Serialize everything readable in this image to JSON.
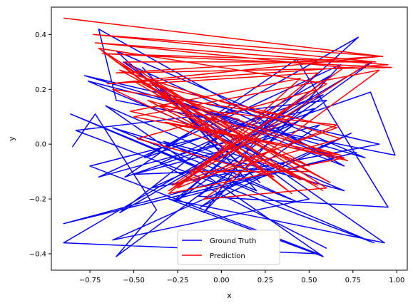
{
  "chart_data": {
    "type": "line",
    "title": "",
    "xlabel": "x",
    "ylabel": "y",
    "xlim": [
      -0.97,
      1.06
    ],
    "ylim": [
      -0.46,
      0.5
    ],
    "x_ticks": [
      -0.75,
      -0.5,
      -0.25,
      0.0,
      0.25,
      0.5,
      0.75,
      1.0
    ],
    "x_tick_labels": [
      "−0.75",
      "−0.50",
      "−0.25",
      "0.00",
      "0.25",
      "0.50",
      "0.75",
      "1.00"
    ],
    "y_ticks": [
      -0.4,
      -0.2,
      0.0,
      0.2,
      0.4
    ],
    "y_tick_labels": [
      "−0.4",
      "−0.2",
      "0.0",
      "0.2",
      "0.4"
    ],
    "grid": false,
    "legend_position": "lower center",
    "series": [
      {
        "name": "Ground Truth",
        "color": "#0000ff",
        "x": [
          -0.85,
          -0.72,
          -0.37,
          -0.6,
          0.6,
          -0.83,
          0.87,
          -0.86,
          0.2,
          -0.45,
          0.02,
          -0.66,
          0.58,
          -0.3,
          0.93,
          -0.56,
          0.65,
          -0.26,
          0.7,
          -0.7,
          -0.6,
          0.99,
          0.85,
          -0.55,
          0.43,
          0.95,
          -0.13,
          0.53,
          -0.75,
          0.55,
          -0.9,
          0.86,
          -0.26,
          0.78,
          -0.44,
          0.58,
          -0.58,
          0.1,
          -0.76,
          0.7,
          -0.33,
          0.43,
          -0.62,
          0.2,
          -0.9,
          0.77,
          -0.26,
          0.62,
          -0.08,
          0.3,
          -0.5,
          0.56,
          -0.12,
          0.74,
          -0.62,
          0.5,
          -0.35,
          0.22,
          -0.6,
          0.82,
          -0.78,
          0.9,
          -0.4,
          0.43,
          -0.7,
          0.68,
          -0.1,
          0.31,
          -0.35,
          0.6
        ],
        "y": [
          -0.01,
          0.11,
          -0.24,
          -0.41,
          0.16,
          0.05,
          -0.36,
          0.11,
          -0.17,
          0.28,
          -0.05,
          0.14,
          -0.41,
          -0.2,
          -0.36,
          0.3,
          -0.05,
          0.16,
          -0.08,
          0.42,
          0.16,
          -0.04,
          0.19,
          -0.12,
          0.31,
          -0.23,
          -0.19,
          0.13,
          -0.08,
          -0.4,
          -0.36,
          0.3,
          -0.21,
          0.39,
          -0.05,
          0.18,
          -0.25,
          0.09,
          0.23,
          -0.17,
          0.01,
          -0.21,
          0.06,
          -0.1,
          -0.29,
          -0.03,
          -0.2,
          0.25,
          0.0,
          -0.09,
          -0.11,
          0.07,
          -0.23,
          0.04,
          -0.35,
          -0.2,
          0.2,
          -0.14,
          0.34,
          -0.05,
          0.25,
          0.0,
          -0.16,
          0.08,
          -0.12,
          0.29,
          -0.25,
          0.12,
          -0.07,
          -0.38
        ]
      },
      {
        "name": "Prediction",
        "color": "#ff0000",
        "x": [
          -0.9,
          0.92,
          -0.73,
          0.88,
          -0.68,
          0.97,
          -0.6,
          0.9,
          -0.65,
          0.95,
          -0.72,
          0.7,
          -0.3,
          0.85,
          -0.55,
          0.6,
          -0.1,
          0.9,
          -0.5,
          0.7,
          -0.3,
          0.55,
          -0.45,
          0.62,
          -0.6,
          0.5,
          -0.35,
          0.66,
          -0.25,
          0.45,
          -0.52,
          0.72,
          -0.33,
          0.4,
          -0.68,
          0.3,
          -0.48,
          0.55,
          -0.28,
          0.68,
          -0.58,
          0.5,
          -0.18,
          0.6,
          -0.7,
          0.45,
          -0.42,
          0.68,
          -0.32,
          0.55,
          -0.62,
          0.4,
          -0.24,
          0.66,
          -0.5,
          0.58
        ],
        "y": [
          0.46,
          0.32,
          0.4,
          0.3,
          0.33,
          0.28,
          0.26,
          0.32,
          0.22,
          0.29,
          0.37,
          0.28,
          -0.17,
          0.3,
          0.3,
          -0.16,
          -0.2,
          0.27,
          0.1,
          -0.05,
          -0.18,
          0.26,
          0.22,
          -0.14,
          0.3,
          -0.08,
          0.14,
          0.07,
          -0.16,
          0.24,
          0.12,
          -0.06,
          0.19,
          -0.18,
          0.34,
          -0.12,
          0.02,
          0.2,
          -0.15,
          0.02,
          0.27,
          -0.1,
          -0.1,
          0.22,
          0.35,
          -0.13,
          0.16,
          -0.04,
          0.08,
          -0.15,
          0.2,
          0.1,
          -0.14,
          0.06,
          0.23,
          -0.17
        ]
      }
    ]
  }
}
